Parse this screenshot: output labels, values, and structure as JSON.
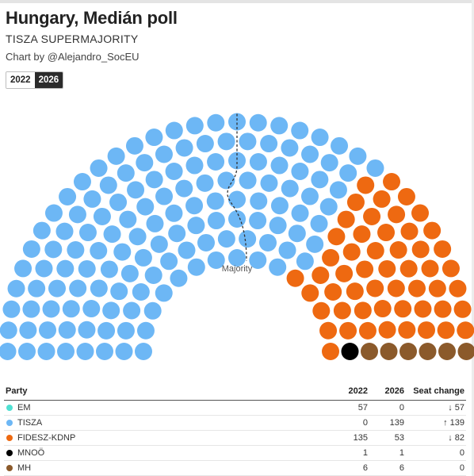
{
  "header": {
    "title": "Hungary, Medián poll",
    "subtitle": "TISZA SUPERMAJORITY",
    "credit": "Chart by @Alejandro_SocEU"
  },
  "year_toggle": {
    "options": [
      "2022",
      "2026"
    ],
    "selected": "2026"
  },
  "chart_data": {
    "type": "parliament",
    "total_seats": 199,
    "majority_label": "Majority",
    "majority_seats": 100,
    "series": [
      {
        "name": "TISZA",
        "color": "#6db7f5",
        "seats": 139
      },
      {
        "name": "FIDESZ-KDNP",
        "color": "#ee6911",
        "seats": 53
      },
      {
        "name": "MNOÖ",
        "color": "#000000",
        "seats": 1
      },
      {
        "name": "MH",
        "color": "#8b5a2b",
        "seats": 6
      }
    ]
  },
  "table": {
    "headers": {
      "party": "Party",
      "y2022": "2022",
      "y2026": "2026",
      "change": "Seat change"
    },
    "rows": [
      {
        "party": "EM",
        "color": "#4fe0d2",
        "y2022": "57",
        "y2026": "0",
        "change": "57",
        "direction": "down",
        "arrow": "↓"
      },
      {
        "party": "TISZA",
        "color": "#6db7f5",
        "y2022": "0",
        "y2026": "139",
        "change": "139",
        "direction": "up",
        "arrow": "↑"
      },
      {
        "party": "FIDESZ-KDNP",
        "color": "#ee6911",
        "y2022": "135",
        "y2026": "53",
        "change": "82",
        "direction": "down",
        "arrow": "↓"
      },
      {
        "party": "MNOÖ",
        "color": "#000000",
        "y2022": "1",
        "y2026": "1",
        "change": "0",
        "direction": "zero",
        "arrow": ""
      },
      {
        "party": "MH",
        "color": "#8b5a2b",
        "y2022": "6",
        "y2026": "6",
        "change": "0",
        "direction": "zero",
        "arrow": ""
      }
    ]
  }
}
